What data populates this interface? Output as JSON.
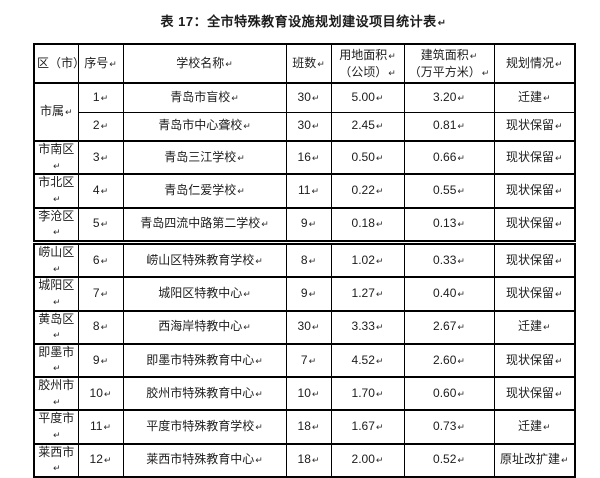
{
  "title": {
    "text": "表 17：全市特殊教育设施规划建设项目统计表",
    "mark": "↵"
  },
  "paragraph_mark": "↵",
  "columns": [
    {
      "id": "district",
      "label_lines": [
        "区（市）"
      ],
      "mark_lines": [
        false
      ]
    },
    {
      "id": "no",
      "label_lines": [
        "序号"
      ],
      "mark_lines": [
        true
      ]
    },
    {
      "id": "school",
      "label_lines": [
        "学校名称"
      ],
      "mark_lines": [
        true
      ]
    },
    {
      "id": "classes",
      "label_lines": [
        "班数"
      ],
      "mark_lines": [
        true
      ]
    },
    {
      "id": "land_area",
      "label_lines": [
        "用地面积",
        "（公顷）"
      ],
      "mark_lines": [
        true,
        true
      ]
    },
    {
      "id": "building_area",
      "label_lines": [
        "建筑面积",
        "（万平方米）"
      ],
      "mark_lines": [
        true,
        true
      ]
    },
    {
      "id": "planning",
      "label_lines": [
        "规划情况"
      ],
      "mark_lines": [
        true
      ]
    }
  ],
  "tables": [
    {
      "has_header": true,
      "rows": [
        {
          "district": "市属",
          "district_rowspan": 2,
          "no": "1",
          "school": "青岛市盲校",
          "classes": "30",
          "land_area": "5.00",
          "building_area": "3.20",
          "planning": "迁建"
        },
        {
          "no": "2",
          "thin_top": true,
          "school": "青岛市中心聋校",
          "classes": "30",
          "land_area": "2.45",
          "building_area": "0.81",
          "planning": "现状保留"
        },
        {
          "district": "市南区",
          "no": "3",
          "school": "青岛三江学校",
          "classes": "16",
          "land_area": "0.50",
          "building_area": "0.66",
          "planning": "现状保留"
        },
        {
          "district": "市北区",
          "no": "4",
          "school": "青岛仁爱学校",
          "classes": "11",
          "land_area": "0.22",
          "building_area": "0.55",
          "planning": "现状保留"
        },
        {
          "district": "李沧区",
          "no": "5",
          "school": "青岛四流中路第二学校",
          "classes": "9",
          "land_area": "0.18",
          "building_area": "0.13",
          "planning": "现状保留"
        }
      ]
    },
    {
      "has_header": false,
      "rows": [
        {
          "district": "崂山区",
          "no": "6",
          "school": "崂山区特殊教育学校",
          "classes": "8",
          "land_area": "1.02",
          "building_area": "0.33",
          "planning": "现状保留"
        },
        {
          "district": "城阳区",
          "no": "7",
          "school": "城阳区特教中心",
          "classes": "9",
          "land_area": "1.27",
          "building_area": "0.40",
          "planning": "现状保留"
        },
        {
          "district": "黄岛区",
          "no": "8",
          "school": "西海岸特教中心",
          "classes": "30",
          "land_area": "3.33",
          "building_area": "2.67",
          "planning": "迁建"
        },
        {
          "district": "即墨市",
          "no": "9",
          "school": "即墨市特殊教育中心",
          "classes": "7",
          "land_area": "4.52",
          "building_area": "2.60",
          "planning": "现状保留"
        },
        {
          "district": "胶州市",
          "no": "10",
          "school": "胶州市特殊教育中心",
          "classes": "10",
          "land_area": "1.70",
          "building_area": "0.60",
          "planning": "现状保留"
        },
        {
          "district": "平度市",
          "no": "11",
          "school": "平度市特殊教育学校",
          "classes": "18",
          "land_area": "1.67",
          "building_area": "0.73",
          "planning": "迁建"
        },
        {
          "district": "莱西市",
          "no": "12",
          "school": "莱西市特殊教育中心",
          "classes": "18",
          "land_area": "2.00",
          "building_area": "0.52",
          "planning": "原址改扩建"
        }
      ]
    }
  ]
}
